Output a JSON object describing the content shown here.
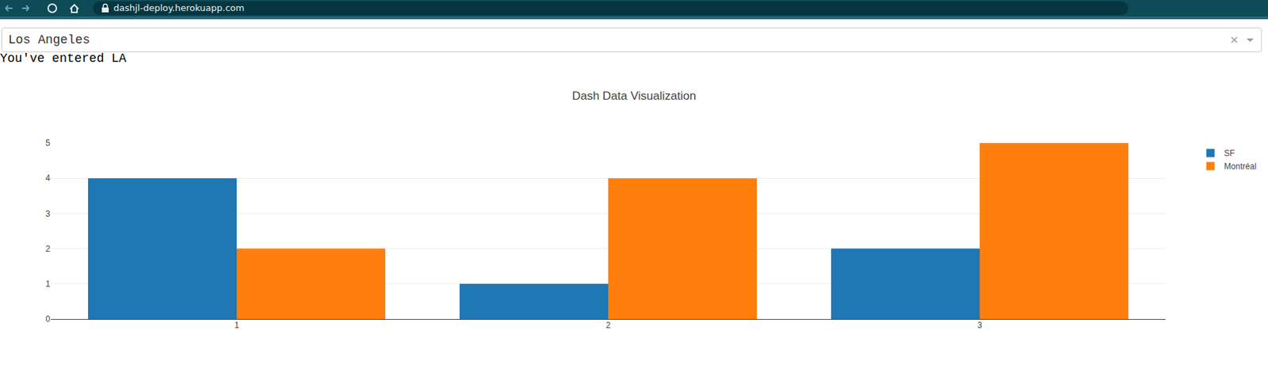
{
  "page": {
    "url": "dashjl-deploy.herokuapp.com",
    "dropdown_value": "Los Angeles",
    "output_text": "You've entered LA"
  },
  "chart_data": {
    "type": "bar",
    "title": "Dash Data Visualization",
    "categories": [
      "1",
      "2",
      "3"
    ],
    "series": [
      {
        "name": "SF",
        "color": "#1f77b4",
        "values": [
          4,
          1,
          2
        ]
      },
      {
        "name": "Montréal",
        "color": "#ff7f0e",
        "values": [
          2,
          4,
          5
        ]
      }
    ],
    "ylim": [
      0,
      5
    ],
    "yticks": [
      0,
      1,
      2,
      3,
      4,
      5
    ],
    "grid": true,
    "legend": "top-right"
  }
}
